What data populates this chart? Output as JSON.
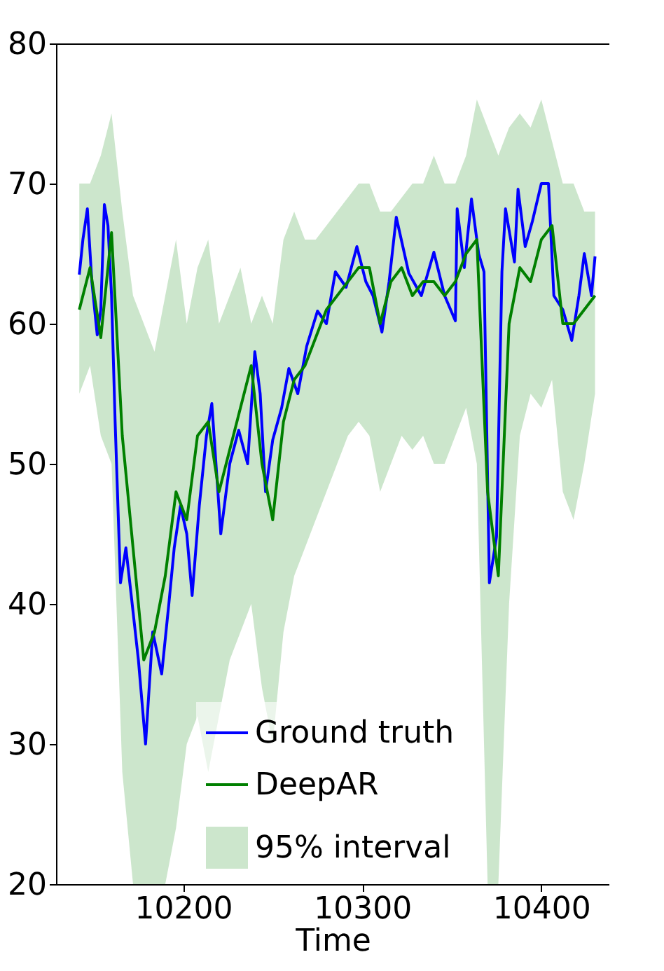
{
  "chart_data": {
    "type": "line",
    "xlabel": "Time",
    "xlim": [
      10129,
      10438
    ],
    "xticks": [
      10200,
      10300,
      10400
    ],
    "ylim": [
      20,
      80
    ],
    "yticks": [
      20,
      30,
      40,
      50,
      60,
      70,
      80
    ],
    "grid": false,
    "legend": "bottom right",
    "line_style": "solid",
    "annotations": [
      "95% interval"
    ],
    "series": [
      {
        "name": "Ground truth",
        "color": "#0000ff",
        "x": [
          10142,
          10144,
          10146.5,
          10149,
          10152,
          10154,
          10156,
          10158,
          10160,
          10162,
          10165,
          10168,
          10171,
          10175,
          10179,
          10183,
          10188,
          10192,
          10195,
          10198.5,
          10202,
          10205,
          10209,
          10213,
          10216,
          10221,
          10226,
          10231,
          10236,
          10240,
          10243,
          10246,
          10250,
          10255,
          10259,
          10264,
          10269,
          10275,
          10280,
          10285,
          10291,
          10297,
          10302,
          10306,
          10311,
          10315,
          10319,
          10326,
          10333,
          10340,
          10346,
          10352,
          10353,
          10357,
          10361,
          10365,
          10368,
          10371,
          10375,
          10378,
          10380,
          10385,
          10387,
          10391,
          10395,
          10400,
          10404,
          10407,
          10412,
          10417,
          10421,
          10424,
          10428,
          10430
        ],
        "values": [
          63.5,
          66,
          68.2,
          63,
          59.2,
          61,
          68.5,
          67,
          62,
          53,
          41.5,
          44,
          40.6,
          36,
          30,
          38,
          35,
          40,
          44,
          47,
          45,
          40.6,
          47,
          52,
          54.3,
          45,
          50,
          52.4,
          50,
          58,
          55,
          48,
          51.7,
          54,
          56.8,
          55,
          58.4,
          60.9,
          60,
          63.7,
          62.6,
          65.5,
          63,
          62,
          59.4,
          63,
          67.6,
          63.6,
          62,
          65.1,
          62,
          60.2,
          68.2,
          64,
          68.9,
          65,
          63.7,
          41.5,
          44.8,
          63.7,
          68.2,
          64.4,
          69.6,
          65.5,
          67.3,
          70,
          70,
          62,
          61,
          58.8,
          62,
          65,
          62,
          64.8
        ]
      },
      {
        "name": "DeepAR",
        "color": "#008000",
        "x": [
          10142,
          10148,
          10154,
          10160,
          10166,
          10172,
          10178,
          10184,
          10190,
          10196,
          10202,
          10208,
          10214,
          10220,
          10226,
          10232,
          10238,
          10244,
          10250,
          10256,
          10262,
          10268,
          10274,
          10280,
          10286,
          10292,
          10298,
          10304,
          10310,
          10316,
          10322,
          10328,
          10334,
          10340,
          10346,
          10352,
          10358,
          10364,
          10370,
          10376,
          10382,
          10388,
          10394,
          10400,
          10406,
          10412,
          10418,
          10424,
          10430
        ],
        "values": [
          61,
          64,
          59,
          66.5,
          52,
          44,
          36,
          38,
          42,
          48,
          46,
          52,
          53,
          48,
          51,
          54,
          57,
          50,
          46,
          53,
          56,
          57,
          59,
          61,
          62,
          63,
          64,
          64,
          60,
          63,
          64,
          62,
          63,
          63,
          62,
          63,
          65,
          66,
          48,
          42,
          60,
          64,
          63,
          66,
          67,
          60,
          60,
          61,
          62
        ],
        "upper": [
          70,
          70,
          72,
          75,
          68,
          62,
          60,
          58,
          62,
          66,
          60,
          64,
          66,
          60,
          62,
          64,
          60,
          62,
          60,
          66,
          68,
          66,
          66,
          67,
          68,
          69,
          70,
          70,
          68,
          68,
          69,
          70,
          70,
          72,
          70,
          70,
          72,
          76,
          74,
          72,
          74,
          75,
          74,
          76,
          73,
          70,
          70,
          68,
          68
        ],
        "lower": [
          55,
          57,
          52,
          50,
          28,
          20,
          20,
          20,
          20,
          24,
          30,
          32,
          28,
          32,
          36,
          38,
          40,
          34,
          30,
          38,
          42,
          44,
          46,
          48,
          50,
          52,
          53,
          52,
          48,
          50,
          52,
          51,
          52,
          50,
          50,
          52,
          54,
          50,
          20,
          20,
          40,
          52,
          55,
          54,
          56,
          48,
          46,
          50,
          55
        ]
      }
    ]
  }
}
